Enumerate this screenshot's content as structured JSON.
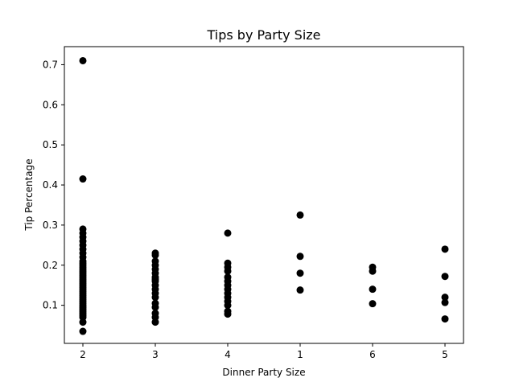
{
  "chart_data": {
    "type": "scatter",
    "title": "Tips by Party Size",
    "xlabel": "Dinner Party Size",
    "ylabel": "Tip Percentage",
    "categories": [
      "2",
      "3",
      "4",
      "1",
      "6",
      "5"
    ],
    "ylim": [
      0.005,
      0.745
    ],
    "yticks": [
      0.1,
      0.2,
      0.3,
      0.4,
      0.5,
      0.6,
      0.7
    ],
    "ytick_labels": [
      "0.1",
      "0.2",
      "0.3",
      "0.4",
      "0.5",
      "0.6",
      "0.7"
    ],
    "grid": false,
    "marker_color": "#000000",
    "points": {
      "2": [
        0.71,
        0.415,
        0.29,
        0.28,
        0.27,
        0.26,
        0.25,
        0.24,
        0.23,
        0.22,
        0.21,
        0.205,
        0.2,
        0.195,
        0.19,
        0.185,
        0.18,
        0.175,
        0.17,
        0.165,
        0.16,
        0.155,
        0.15,
        0.145,
        0.14,
        0.135,
        0.13,
        0.125,
        0.12,
        0.115,
        0.11,
        0.105,
        0.1,
        0.095,
        0.09,
        0.085,
        0.08,
        0.075,
        0.07,
        0.058,
        0.035
      ],
      "3": [
        0.23,
        0.225,
        0.21,
        0.2,
        0.19,
        0.18,
        0.17,
        0.165,
        0.16,
        0.15,
        0.14,
        0.13,
        0.12,
        0.105,
        0.095,
        0.08,
        0.07,
        0.058
      ],
      "4": [
        0.28,
        0.205,
        0.195,
        0.185,
        0.17,
        0.16,
        0.15,
        0.14,
        0.13,
        0.12,
        0.11,
        0.1,
        0.085,
        0.078
      ],
      "1": [
        0.325,
        0.222,
        0.18,
        0.138
      ],
      "6": [
        0.195,
        0.185,
        0.14,
        0.104
      ],
      "5": [
        0.24,
        0.172,
        0.12,
        0.107,
        0.066
      ]
    }
  }
}
